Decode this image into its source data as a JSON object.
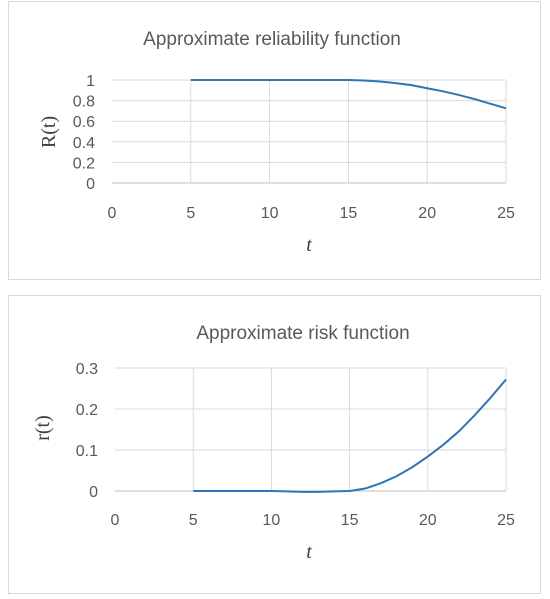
{
  "chart_data": [
    {
      "type": "line",
      "title": "Approximate reliability function",
      "xlabel": "t",
      "ylabel": "R(t)",
      "xlim": [
        0,
        25
      ],
      "ylim": [
        0,
        1
      ],
      "xticks": [
        "0",
        "5",
        "10",
        "15",
        "20",
        "25"
      ],
      "yticks": [
        "0",
        "0.2",
        "0.4",
        "0.6",
        "0.8",
        "1"
      ],
      "grid": true,
      "legend": "none",
      "series_color": "#2e75b6",
      "series": [
        {
          "x": [
            5,
            7,
            9,
            11,
            13,
            15,
            16,
            17,
            18,
            19,
            20,
            21,
            22,
            23,
            24,
            25
          ],
          "values": [
            1,
            1,
            1,
            1,
            1,
            1,
            0.995,
            0.985,
            0.97,
            0.95,
            0.92,
            0.89,
            0.855,
            0.815,
            0.77,
            0.725
          ]
        }
      ]
    },
    {
      "type": "line",
      "title": "Approximate risk function",
      "xlabel": "t",
      "ylabel": "r(t)",
      "xlim": [
        0,
        25
      ],
      "ylim": [
        0,
        0.3
      ],
      "xticks": [
        "0",
        "5",
        "10",
        "15",
        "20",
        "25"
      ],
      "yticks": [
        "0",
        "0.1",
        "0.2",
        "0.3"
      ],
      "grid": true,
      "legend": "none",
      "series_color": "#2e75b6",
      "series": [
        {
          "x": [
            5,
            7,
            9,
            10,
            11,
            12,
            13,
            14,
            15,
            16,
            17,
            18,
            19,
            20,
            21,
            22,
            23,
            24,
            25
          ],
          "values": [
            0,
            0,
            0,
            0,
            -0.001,
            -0.002,
            -0.002,
            -0.001,
            0,
            0.006,
            0.019,
            0.036,
            0.058,
            0.084,
            0.113,
            0.146,
            0.185,
            0.227,
            0.272
          ]
        }
      ]
    }
  ]
}
